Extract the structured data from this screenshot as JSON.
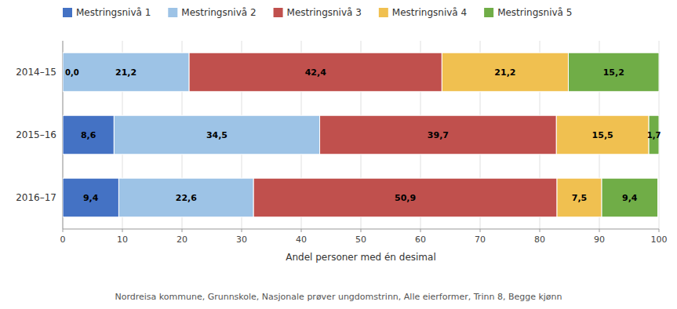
{
  "chart_data": {
    "type": "bar",
    "orientation": "horizontal",
    "stacked": true,
    "categories": [
      "2014–15",
      "2015–16",
      "2016–17"
    ],
    "series": [
      {
        "name": "Mestringsnivå 1",
        "color": "#4472C4",
        "values": [
          0.0,
          8.6,
          9.4
        ],
        "value_labels": [
          "0,0",
          "8,6",
          "9,4"
        ]
      },
      {
        "name": "Mestringsnivå 2",
        "color": "#9DC3E6",
        "values": [
          21.2,
          34.5,
          22.6
        ],
        "value_labels": [
          "21,2",
          "34,5",
          "22,6"
        ]
      },
      {
        "name": "Mestringsnivå 3",
        "color": "#C0504D",
        "values": [
          42.4,
          39.7,
          50.9
        ],
        "value_labels": [
          "42,4",
          "39,7",
          "50,9"
        ]
      },
      {
        "name": "Mestringsnivå 4",
        "color": "#F0C050",
        "values": [
          21.2,
          15.5,
          7.5
        ],
        "value_labels": [
          "21,2",
          "15,5",
          "7,5"
        ]
      },
      {
        "name": "Mestringsnivå 5",
        "color": "#70AD47",
        "values": [
          15.2,
          1.7,
          9.4
        ],
        "value_labels": [
          "15,2",
          "1,7",
          "9,4"
        ]
      }
    ],
    "x_label": "Andel personer med én desimal",
    "xlim": [
      0,
      100
    ],
    "xticks": [
      0,
      10,
      20,
      30,
      40,
      50,
      60,
      70,
      80,
      90,
      100
    ],
    "grid": true,
    "legend": "top",
    "data_labels": true,
    "annotations": [
      "Nordreisa kommune, Grunnskole, Nasjonale prøver ungdomstrinn, Alle eierformer, Trinn 8, Begge kjønn"
    ]
  }
}
